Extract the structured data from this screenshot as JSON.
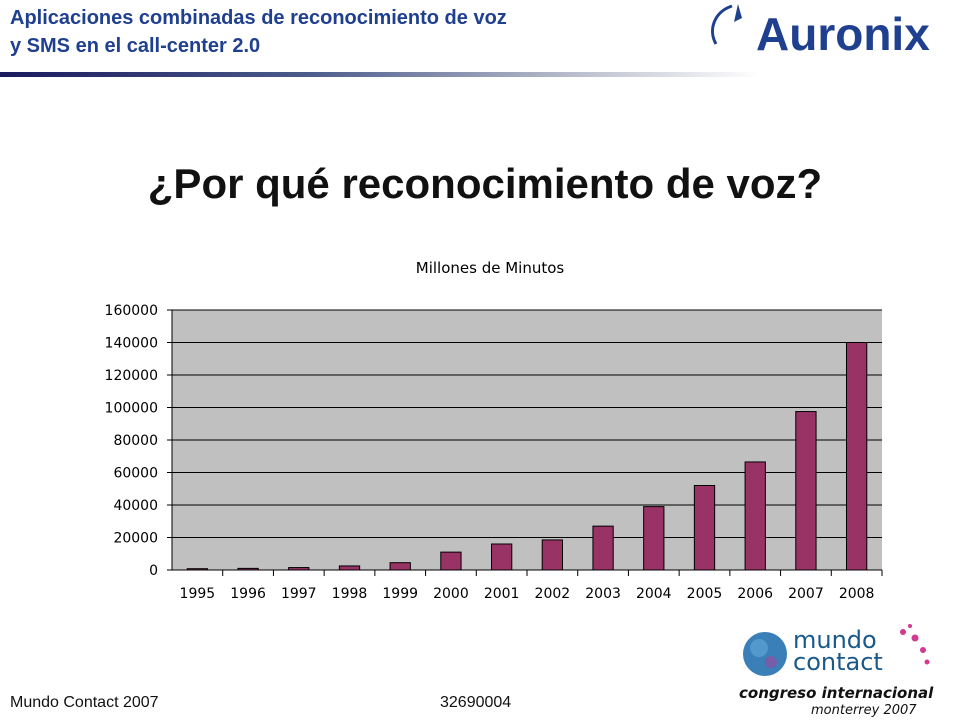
{
  "header": {
    "title_line1": "Aplicaciones combinadas de reconocimiento de voz",
    "title_line2": "y SMS en el call-center 2.0",
    "brand": "Auronix"
  },
  "slide": {
    "title": "¿Por qué reconocimiento de voz?"
  },
  "footer": {
    "left_text": "Mundo Contact 2007",
    "code": "32690004"
  },
  "event_logo": {
    "line1": "mundo",
    "line2": "contact",
    "line3": "congreso internacional",
    "line4": "monterrey 2007"
  },
  "colors": {
    "header_text": "#1f3f8f",
    "bar_fill": "#993366",
    "plot_background": "#c0c0c0",
    "brand_blue": "#1f3f8f"
  },
  "chart_data": {
    "type": "bar",
    "title": "Millones de Minutos",
    "xlabel": "",
    "ylabel": "",
    "categories": [
      "1995",
      "1996",
      "1997",
      "1998",
      "1999",
      "2000",
      "2001",
      "2002",
      "2003",
      "2004",
      "2005",
      "2006",
      "2007",
      "2008"
    ],
    "values": [
      800,
      1000,
      1500,
      2500,
      4500,
      11000,
      16000,
      18500,
      27000,
      39000,
      52000,
      66500,
      97500,
      140000
    ],
    "ylim": [
      0,
      160000
    ],
    "yticks": [
      "0",
      "20000",
      "40000",
      "60000",
      "80000",
      "100000",
      "120000",
      "140000",
      "160000"
    ],
    "grid": true,
    "legend": "none"
  }
}
